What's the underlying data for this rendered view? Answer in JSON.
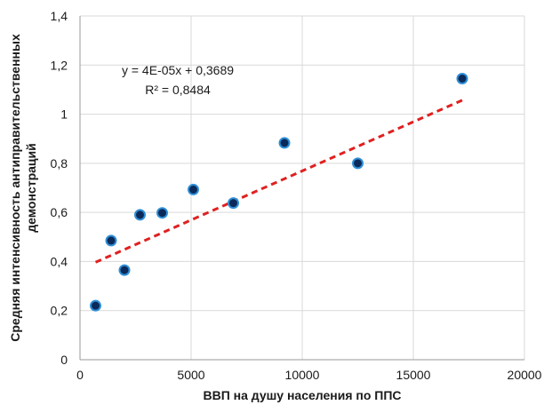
{
  "chart_data": {
    "type": "scatter",
    "title": "",
    "xlabel": "ВВП на душу населения по ППС",
    "ylabel_lines": [
      "Средняя интенсивность антиправительственных",
      "демонстраций"
    ],
    "xlim": [
      0,
      20000
    ],
    "ylim": [
      0,
      1.4
    ],
    "x_ticks": [
      0,
      5000,
      10000,
      15000,
      20000
    ],
    "x_tick_labels": [
      "0",
      "5000",
      "10000",
      "15000",
      "20000"
    ],
    "y_ticks": [
      0,
      0.2,
      0.4,
      0.6,
      0.8,
      1,
      1.2,
      1.4
    ],
    "y_tick_labels": [
      "0",
      "0,2",
      "0,4",
      "0,6",
      "0,8",
      "1",
      "1,2",
      "1,4"
    ],
    "grid": "both",
    "legend": "none",
    "points": [
      {
        "x": 700,
        "y": 0.22
      },
      {
        "x": 1400,
        "y": 0.485
      },
      {
        "x": 2000,
        "y": 0.365
      },
      {
        "x": 2700,
        "y": 0.59
      },
      {
        "x": 3700,
        "y": 0.598
      },
      {
        "x": 5100,
        "y": 0.693
      },
      {
        "x": 6900,
        "y": 0.638
      },
      {
        "x": 9200,
        "y": 0.883
      },
      {
        "x": 12500,
        "y": 0.8
      },
      {
        "x": 17200,
        "y": 1.145
      }
    ],
    "trendline": {
      "type": "linear",
      "slope": 4e-05,
      "intercept": 0.3689,
      "x_range": [
        700,
        17200
      ],
      "equation": "y = 4E-05x + 0,3689",
      "r_squared": "R² = 0,8484"
    },
    "colors": {
      "marker_fill": "#0b2a5a",
      "marker_edge": "#2f8fd6",
      "trendline": "#e02020",
      "grid": "#d9d9d9",
      "axis": "#9a9a9a"
    }
  }
}
